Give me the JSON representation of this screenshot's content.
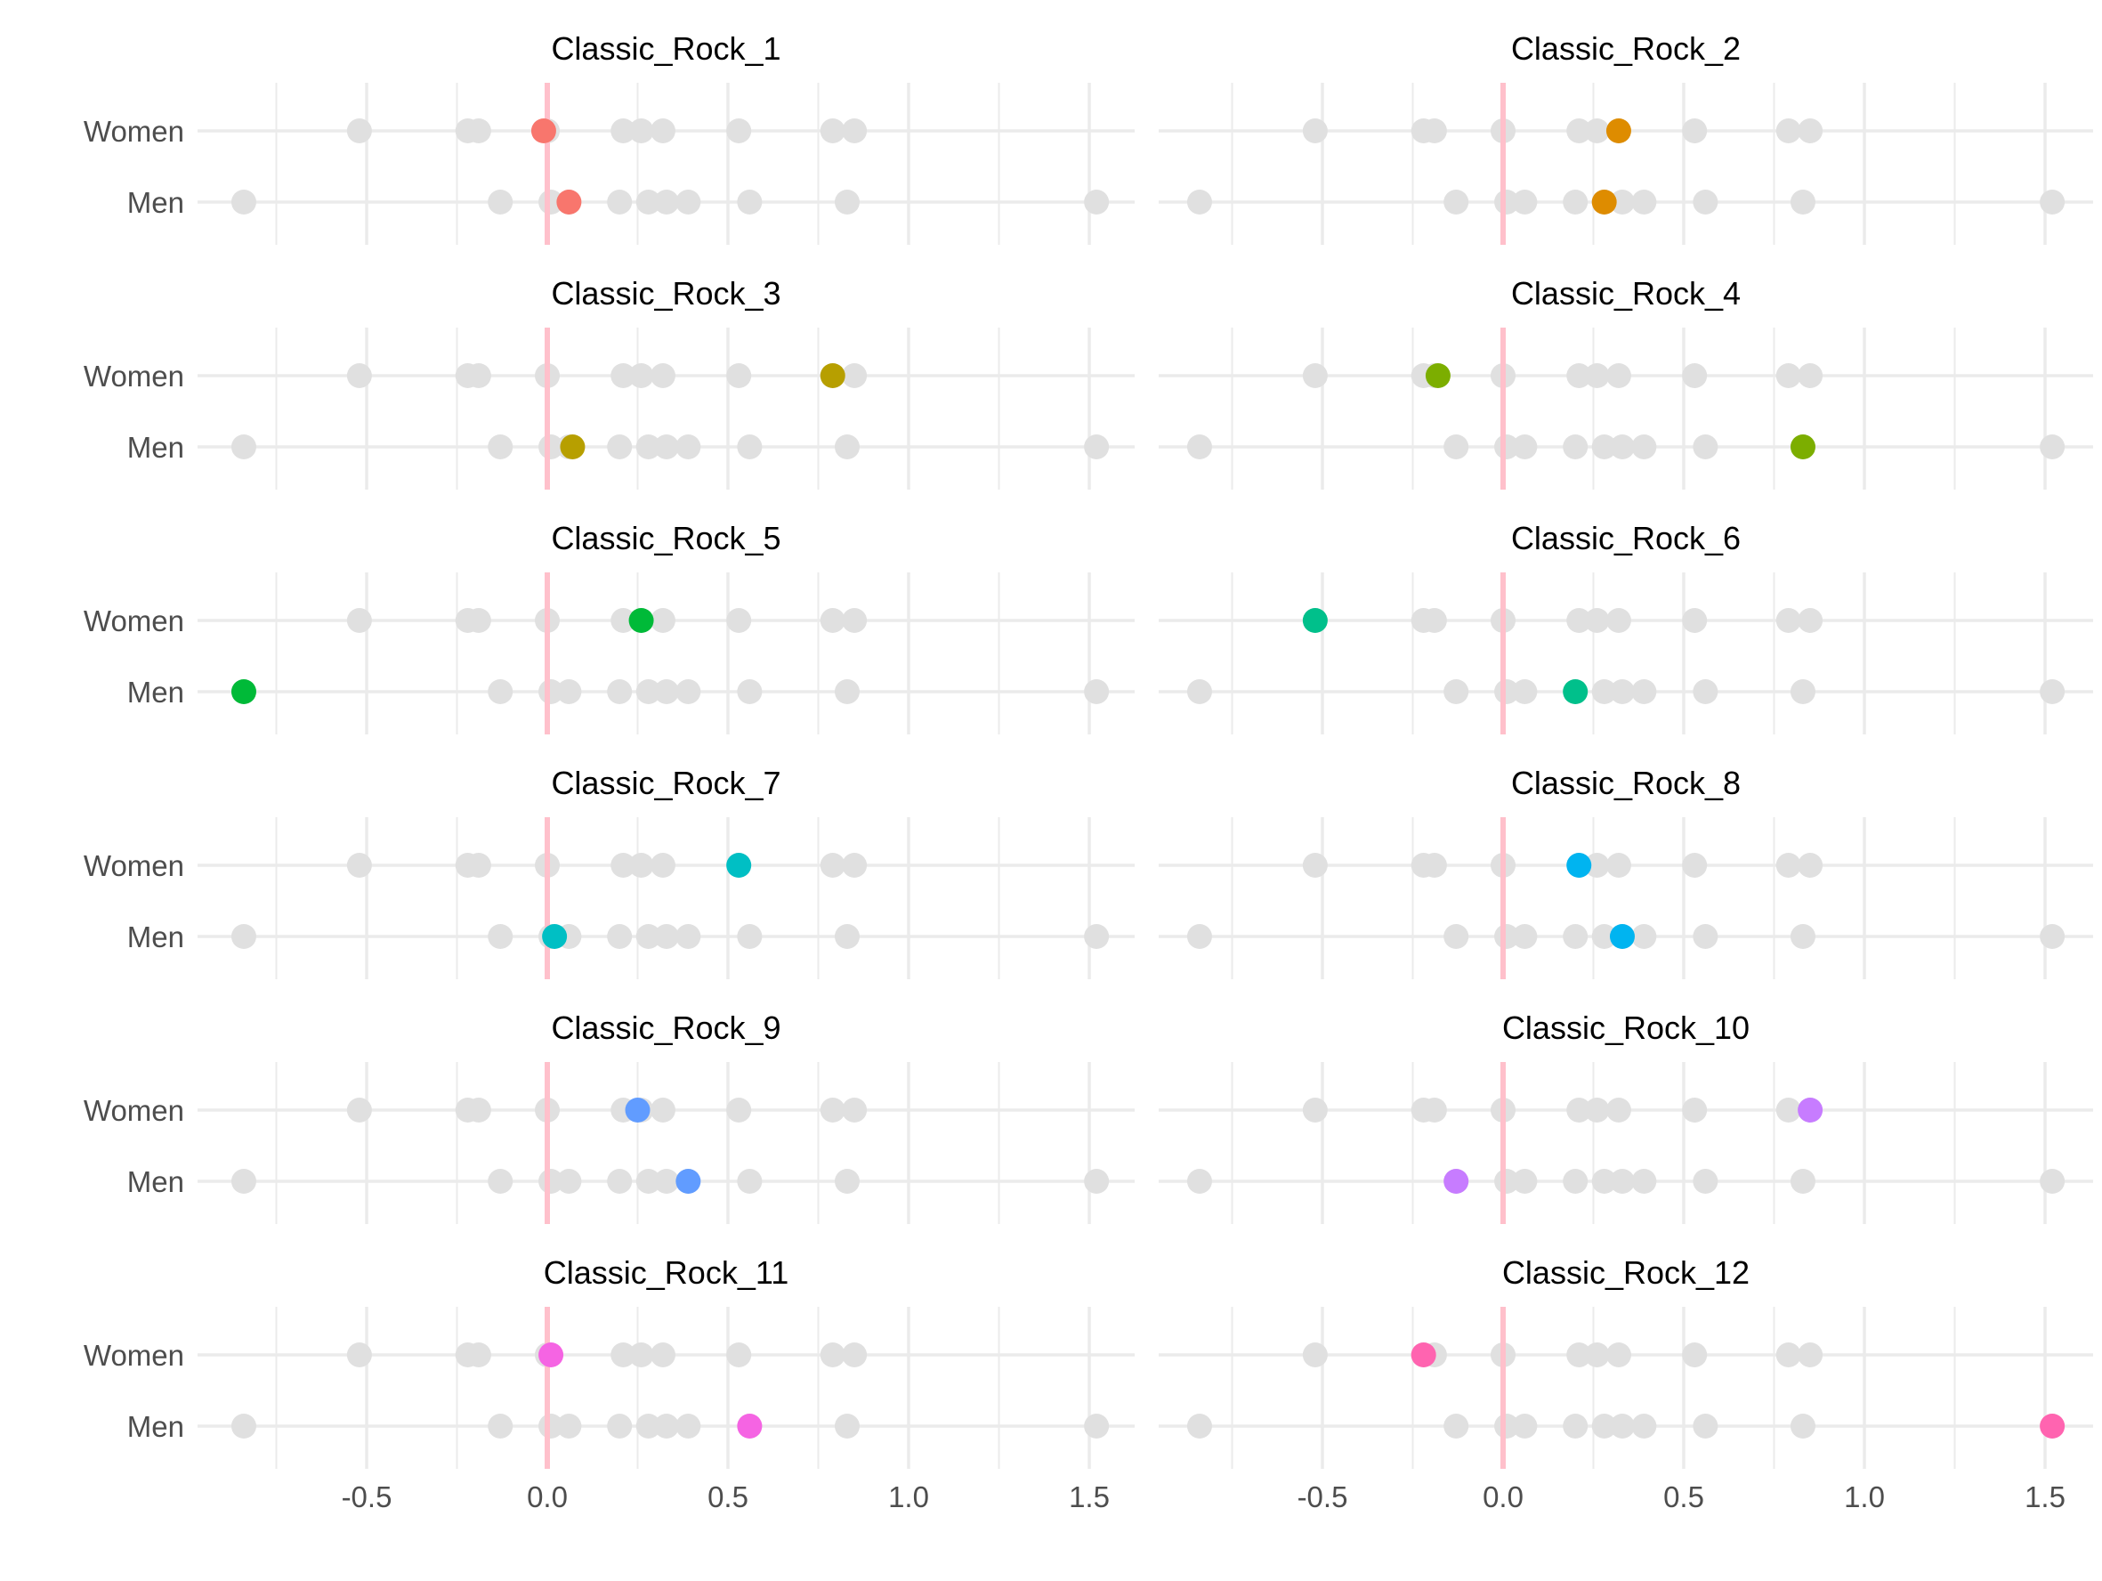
{
  "chart_data": {
    "type": "scatter",
    "description_of_layout": "",
    "x_ticks": [
      -0.5,
      0.0,
      0.5,
      1.0,
      1.5
    ],
    "x_tick_labels": [
      "-0.5",
      "0.0",
      "0.5",
      "1.0",
      "1.5"
    ],
    "xlim": [
      -0.92,
      1.62
    ],
    "rows": [
      "Women",
      "Men"
    ],
    "reference_line": 0,
    "colors": {
      "background_points": "#e0e0e0",
      "grid": "#ebebeb",
      "reference_line": "#ffc0cb",
      "row_label": "#4d4d4d",
      "tick_label": "#4d4d4d",
      "title": "#000000"
    },
    "background_points": {
      "Women": [
        -0.52,
        -0.22,
        -0.19,
        0.0,
        0.21,
        0.26,
        0.32,
        0.53,
        0.79,
        0.85
      ],
      "Men": [
        -0.84,
        -0.13,
        0.01,
        0.06,
        0.2,
        0.28,
        0.33,
        0.39,
        0.56,
        0.83,
        1.52
      ]
    },
    "panels": [
      {
        "title": "Classic_Rock_1",
        "color": "#F8766D",
        "Women": -0.01,
        "Men": 0.06
      },
      {
        "title": "Classic_Rock_2",
        "color": "#DE8C00",
        "Women": 0.32,
        "Men": 0.28
      },
      {
        "title": "Classic_Rock_3",
        "color": "#B79F00",
        "Women": 0.79,
        "Men": 0.07
      },
      {
        "title": "Classic_Rock_4",
        "color": "#7CAE00",
        "Women": -0.18,
        "Men": 0.83
      },
      {
        "title": "Classic_Rock_5",
        "color": "#00BA38",
        "Women": 0.26,
        "Men": -0.84
      },
      {
        "title": "Classic_Rock_6",
        "color": "#00C08B",
        "Women": -0.52,
        "Men": 0.2
      },
      {
        "title": "Classic_Rock_7",
        "color": "#00BFC4",
        "Women": 0.53,
        "Men": 0.02
      },
      {
        "title": "Classic_Rock_8",
        "color": "#00B4F0",
        "Women": 0.21,
        "Men": 0.33
      },
      {
        "title": "Classic_Rock_9",
        "color": "#619CFF",
        "Women": 0.25,
        "Men": 0.39
      },
      {
        "title": "Classic_Rock_10",
        "color": "#C77CFF",
        "Women": 0.85,
        "Men": -0.13
      },
      {
        "title": "Classic_Rock_11",
        "color": "#F564E3",
        "Women": 0.01,
        "Men": 0.56
      },
      {
        "title": "Classic_Rock_12",
        "color": "#FF64B0",
        "Women": -0.22,
        "Men": 1.52
      }
    ]
  }
}
